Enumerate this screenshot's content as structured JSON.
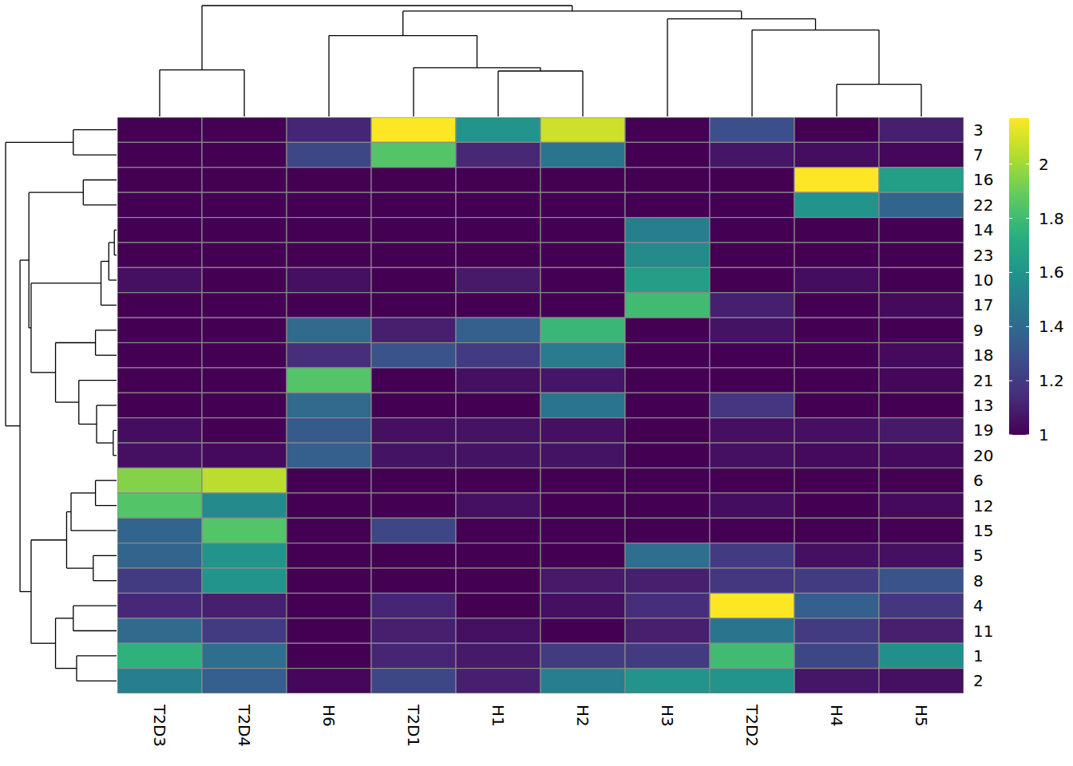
{
  "chart_data": {
    "type": "heatmap",
    "columns": [
      "T2D3",
      "T2D4",
      "H6",
      "T2D1",
      "H1",
      "H2",
      "H3",
      "T2D2",
      "H4",
      "H5"
    ],
    "rows": [
      "3",
      "7",
      "16",
      "22",
      "14",
      "23",
      "10",
      "17",
      "9",
      "18",
      "21",
      "13",
      "19",
      "20",
      "6",
      "12",
      "15",
      "5",
      "8",
      "4",
      "11",
      "1",
      "2"
    ],
    "values": [
      [
        1,
        1,
        1.12,
        2.17,
        1.6,
        2.08,
        1,
        1.28,
        1,
        1.1
      ],
      [
        1,
        1,
        1.25,
        1.85,
        1.13,
        1.45,
        1,
        1.07,
        1.04,
        1.02
      ],
      [
        1,
        1,
        1,
        1,
        1,
        1,
        1,
        1,
        2.17,
        1.65
      ],
      [
        1,
        1,
        1,
        1,
        1,
        1,
        1,
        1,
        1.6,
        1.38
      ],
      [
        1,
        1,
        1,
        1,
        1,
        1,
        1.5,
        1,
        1,
        1
      ],
      [
        1,
        1,
        1,
        1,
        1,
        1,
        1.55,
        1,
        1,
        1
      ],
      [
        1.05,
        1,
        1.05,
        1,
        1.08,
        1,
        1.65,
        1,
        1.04,
        1
      ],
      [
        1,
        1,
        1,
        1,
        1,
        1,
        1.8,
        1.1,
        1,
        1.03
      ],
      [
        1,
        1,
        1.4,
        1.1,
        1.35,
        1.78,
        1,
        1.06,
        1,
        1
      ],
      [
        1,
        1,
        1.15,
        1.3,
        1.2,
        1.48,
        1,
        1,
        1,
        1.03
      ],
      [
        1,
        1,
        1.85,
        1,
        1.05,
        1.07,
        1,
        1,
        1,
        1.02
      ],
      [
        1,
        1,
        1.4,
        1,
        1,
        1.45,
        1,
        1.18,
        1,
        1
      ],
      [
        1.04,
        1,
        1.33,
        1.05,
        1.06,
        1.05,
        1,
        1.05,
        1.05,
        1.08
      ],
      [
        1.05,
        1.03,
        1.35,
        1.06,
        1.06,
        1.06,
        1,
        1.05,
        1.03,
        1.03
      ],
      [
        1.95,
        2.05,
        1,
        1,
        1,
        1,
        1,
        1,
        1,
        1
      ],
      [
        1.85,
        1.55,
        1,
        1,
        1.05,
        1,
        1,
        1.04,
        1,
        1.03
      ],
      [
        1.38,
        1.85,
        1,
        1.25,
        1,
        1,
        1,
        1,
        1,
        1
      ],
      [
        1.38,
        1.6,
        1,
        1,
        1,
        1,
        1.42,
        1.2,
        1.05,
        1.05
      ],
      [
        1.2,
        1.6,
        1,
        1,
        1,
        1.08,
        1.1,
        1.18,
        1.2,
        1.3
      ],
      [
        1.13,
        1.1,
        1,
        1.12,
        1,
        1.05,
        1.15,
        2.17,
        1.35,
        1.18
      ],
      [
        1.4,
        1.2,
        1,
        1.1,
        1.05,
        1,
        1.1,
        1.45,
        1.2,
        1.1
      ],
      [
        1.75,
        1.42,
        1,
        1.12,
        1.08,
        1.2,
        1.2,
        1.8,
        1.25,
        1.58
      ],
      [
        1.5,
        1.35,
        1.02,
        1.25,
        1.1,
        1.5,
        1.6,
        1.6,
        1.07,
        1.05
      ]
    ],
    "colorbar": {
      "lim": [
        1,
        2.17
      ],
      "ticks": [
        1,
        1.2,
        1.4,
        1.6,
        1.8,
        2
      ]
    },
    "column_dendrogram": {
      "height": 1.0,
      "children": [
        {
          "height": 0.42,
          "children": [
            "T2D3",
            "T2D4"
          ]
        },
        {
          "height": 0.95,
          "children": [
            {
              "height": 0.73,
              "children": [
                "H6",
                {
                  "height": 0.44,
                  "children": [
                    "T2D1",
                    {
                      "height": 0.41,
                      "children": [
                        "H1",
                        "H2"
                      ]
                    }
                  ]
                }
              ]
            },
            {
              "height": 0.88,
              "children": [
                "H3",
                {
                  "height": 0.78,
                  "children": [
                    "T2D2",
                    {
                      "height": 0.29,
                      "children": [
                        "H4",
                        "H5"
                      ]
                    }
                  ]
                }
              ]
            }
          ]
        }
      ]
    },
    "row_dendrogram": {
      "height": 1.0,
      "children": [
        {
          "height": 0.39,
          "children": [
            "3",
            "7"
          ]
        },
        {
          "height": 0.87,
          "children": [
            {
              "height": 0.79,
              "children": [
                {
                  "height": 0.3,
                  "children": [
                    "16",
                    "22"
                  ]
                },
                {
                  "height": 0.77,
                  "children": [
                    {
                      "height": 0.14,
                      "children": [
                        {
                          "height": 0.07,
                          "children": [
                            {
                              "height": 0.02,
                              "children": [
                                "14",
                                "23"
                              ]
                            },
                            "10"
                          ]
                        },
                        "17"
                      ]
                    },
                    {
                      "height": 0.55,
                      "children": [
                        {
                          "height": 0.19,
                          "children": [
                            "9",
                            "18"
                          ]
                        },
                        {
                          "height": 0.34,
                          "children": [
                            "21",
                            {
                              "height": 0.18,
                              "children": [
                                "13",
                                {
                                  "height": 0.03,
                                  "children": [
                                    "19",
                                    "20"
                                  ]
                                }
                              ]
                            }
                          ]
                        }
                      ]
                    }
                  ]
                }
              ]
            },
            {
              "height": 0.77,
              "children": [
                {
                  "height": 0.45,
                  "children": [
                    {
                      "height": 0.41,
                      "children": [
                        {
                          "height": 0.19,
                          "children": [
                            "6",
                            "12"
                          ]
                        },
                        "15"
                      ]
                    },
                    {
                      "height": 0.21,
                      "children": [
                        "5",
                        "8"
                      ]
                    }
                  ]
                },
                {
                  "height": 0.55,
                  "children": [
                    {
                      "height": 0.39,
                      "children": [
                        "4",
                        "11"
                      ]
                    },
                    {
                      "height": 0.36,
                      "children": [
                        "1",
                        "2"
                      ]
                    }
                  ]
                }
              ]
            }
          ]
        }
      ]
    }
  }
}
